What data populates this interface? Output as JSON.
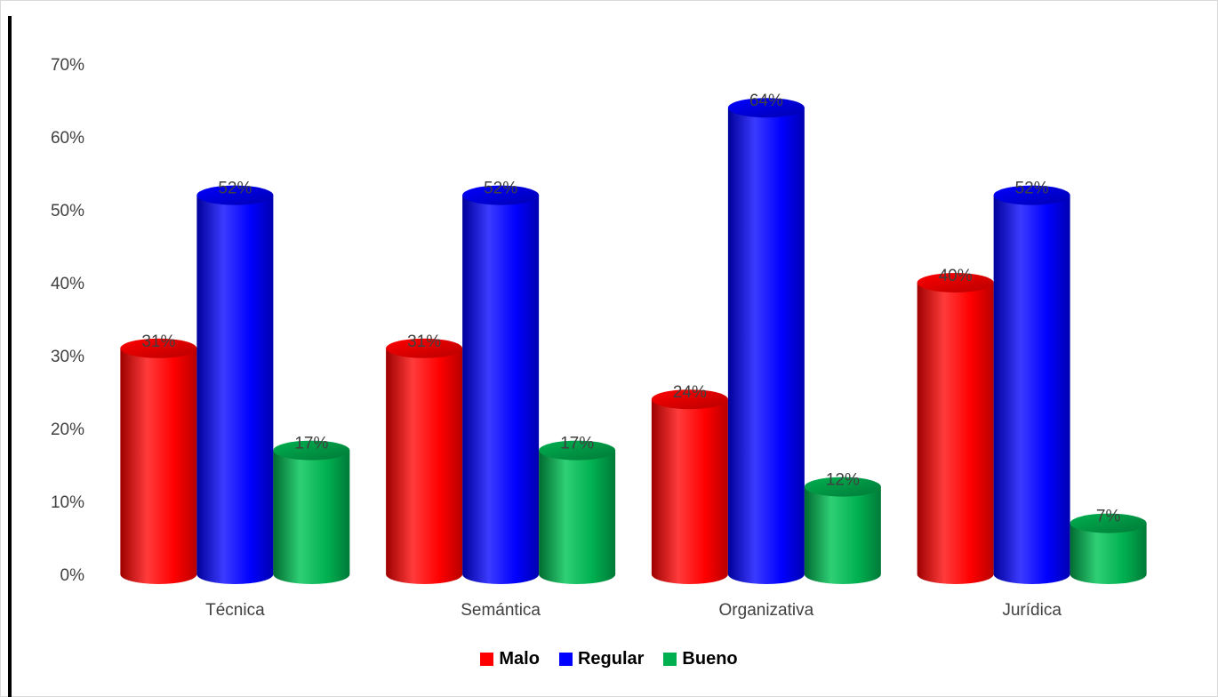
{
  "chart_data": {
    "type": "bar",
    "categories": [
      "Técnica",
      "Semántica",
      "Organizativa",
      "Jurídica"
    ],
    "series": [
      {
        "name": "Malo",
        "values": [
          31,
          31,
          24,
          40
        ],
        "labels": [
          "31%",
          "31%",
          "24%",
          "40%"
        ],
        "color": "#ff0000"
      },
      {
        "name": "Regular",
        "values": [
          52,
          52,
          64,
          52
        ],
        "labels": [
          "52%",
          "52%",
          "64%",
          "52%"
        ],
        "color": "#0000ff"
      },
      {
        "name": "Bueno",
        "values": [
          17,
          17,
          12,
          7
        ],
        "labels": [
          "17%",
          "17%",
          "12%",
          "7%"
        ],
        "color": "#00b050"
      }
    ],
    "y_ticks": [
      "0%",
      "10%",
      "20%",
      "30%",
      "40%",
      "50%",
      "60%",
      "70%"
    ],
    "ylim": [
      0,
      70
    ],
    "legend_position": "bottom",
    "grid": false,
    "style": "3d-cylinder"
  }
}
